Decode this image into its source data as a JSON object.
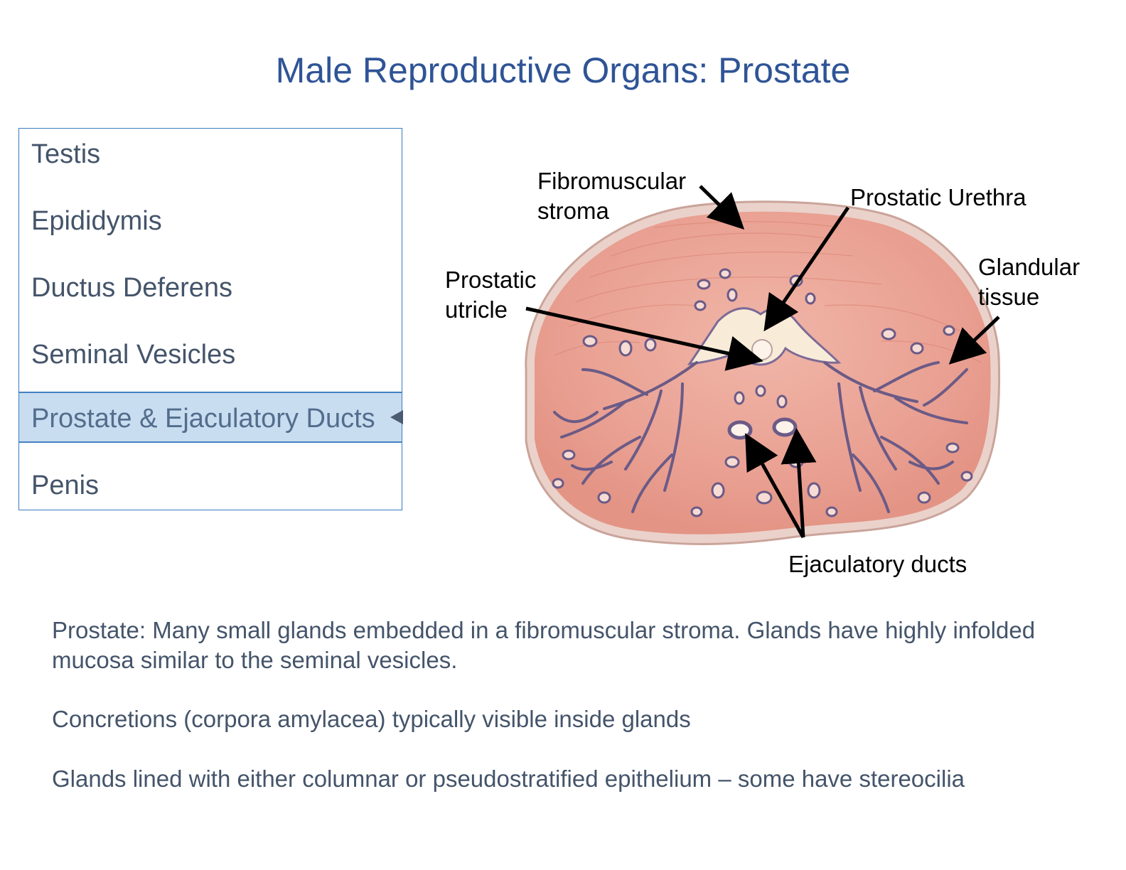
{
  "title": "Male Reproductive Organs: Prostate",
  "nav": {
    "items": [
      {
        "label": "Testis"
      },
      {
        "label": "Epididymis"
      },
      {
        "label": "Ductus Deferens"
      },
      {
        "label": "Seminal Vesicles"
      },
      {
        "label": "Prostate & Ejaculatory Ducts",
        "active": true
      },
      {
        "label": "Penis"
      }
    ]
  },
  "diagram": {
    "labels": {
      "fibromuscular_stroma": "Fibromuscular\nstroma",
      "prostatic_urethra": "Prostatic Urethra",
      "prostatic_utricle": "Prostatic\nutricle",
      "glandular_tissue": "Glandular\ntissue",
      "ejaculatory_ducts": "Ejaculatory ducts"
    },
    "colors": {
      "stroma": "#e9a092",
      "stroma_light": "#f3c3b6",
      "gland": "#6b5a86",
      "capsule": "#e8c8bf"
    }
  },
  "text": {
    "p1": "Prostate: Many small glands embedded in a fibromuscular stroma. Glands have highly infolded mucosa similar to the seminal vesicles.",
    "p2": "Concretions (corpora amylacea) typically visible inside glands",
    "p3": "Glands lined with either columnar or pseudostratified epithelium – some have stereocilia"
  }
}
